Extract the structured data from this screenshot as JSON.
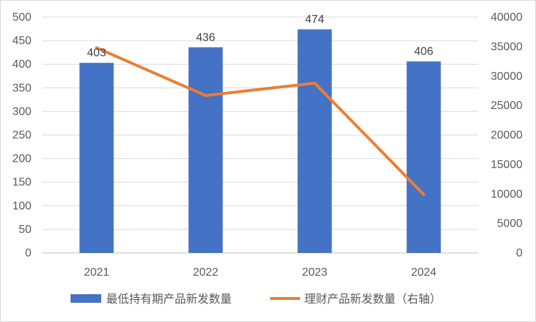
{
  "chart_data": {
    "type": "bar",
    "title": "",
    "categories": [
      "2021",
      "2022",
      "2023",
      "2024"
    ],
    "series": [
      {
        "name": "最低持有期产品新发数量",
        "type": "bar",
        "axis": "left",
        "values": [
          403,
          436,
          474,
          406
        ],
        "color": "#4472c4"
      },
      {
        "name": "理财产品新发数量（右轴）",
        "type": "line",
        "axis": "right",
        "values": [
          34800,
          26700,
          28800,
          9900
        ],
        "color": "#ed7d31"
      }
    ],
    "y_left": {
      "min": 0,
      "max": 500,
      "ticks": [
        0,
        50,
        100,
        150,
        200,
        250,
        300,
        350,
        400,
        450,
        500
      ]
    },
    "y_right": {
      "min": 0,
      "max": 40000,
      "ticks": [
        0,
        5000,
        10000,
        15000,
        20000,
        25000,
        30000,
        35000,
        40000
      ]
    },
    "grid": true,
    "legend_position": "bottom",
    "data_labels": [
      "403",
      "436",
      "474",
      "406"
    ]
  }
}
